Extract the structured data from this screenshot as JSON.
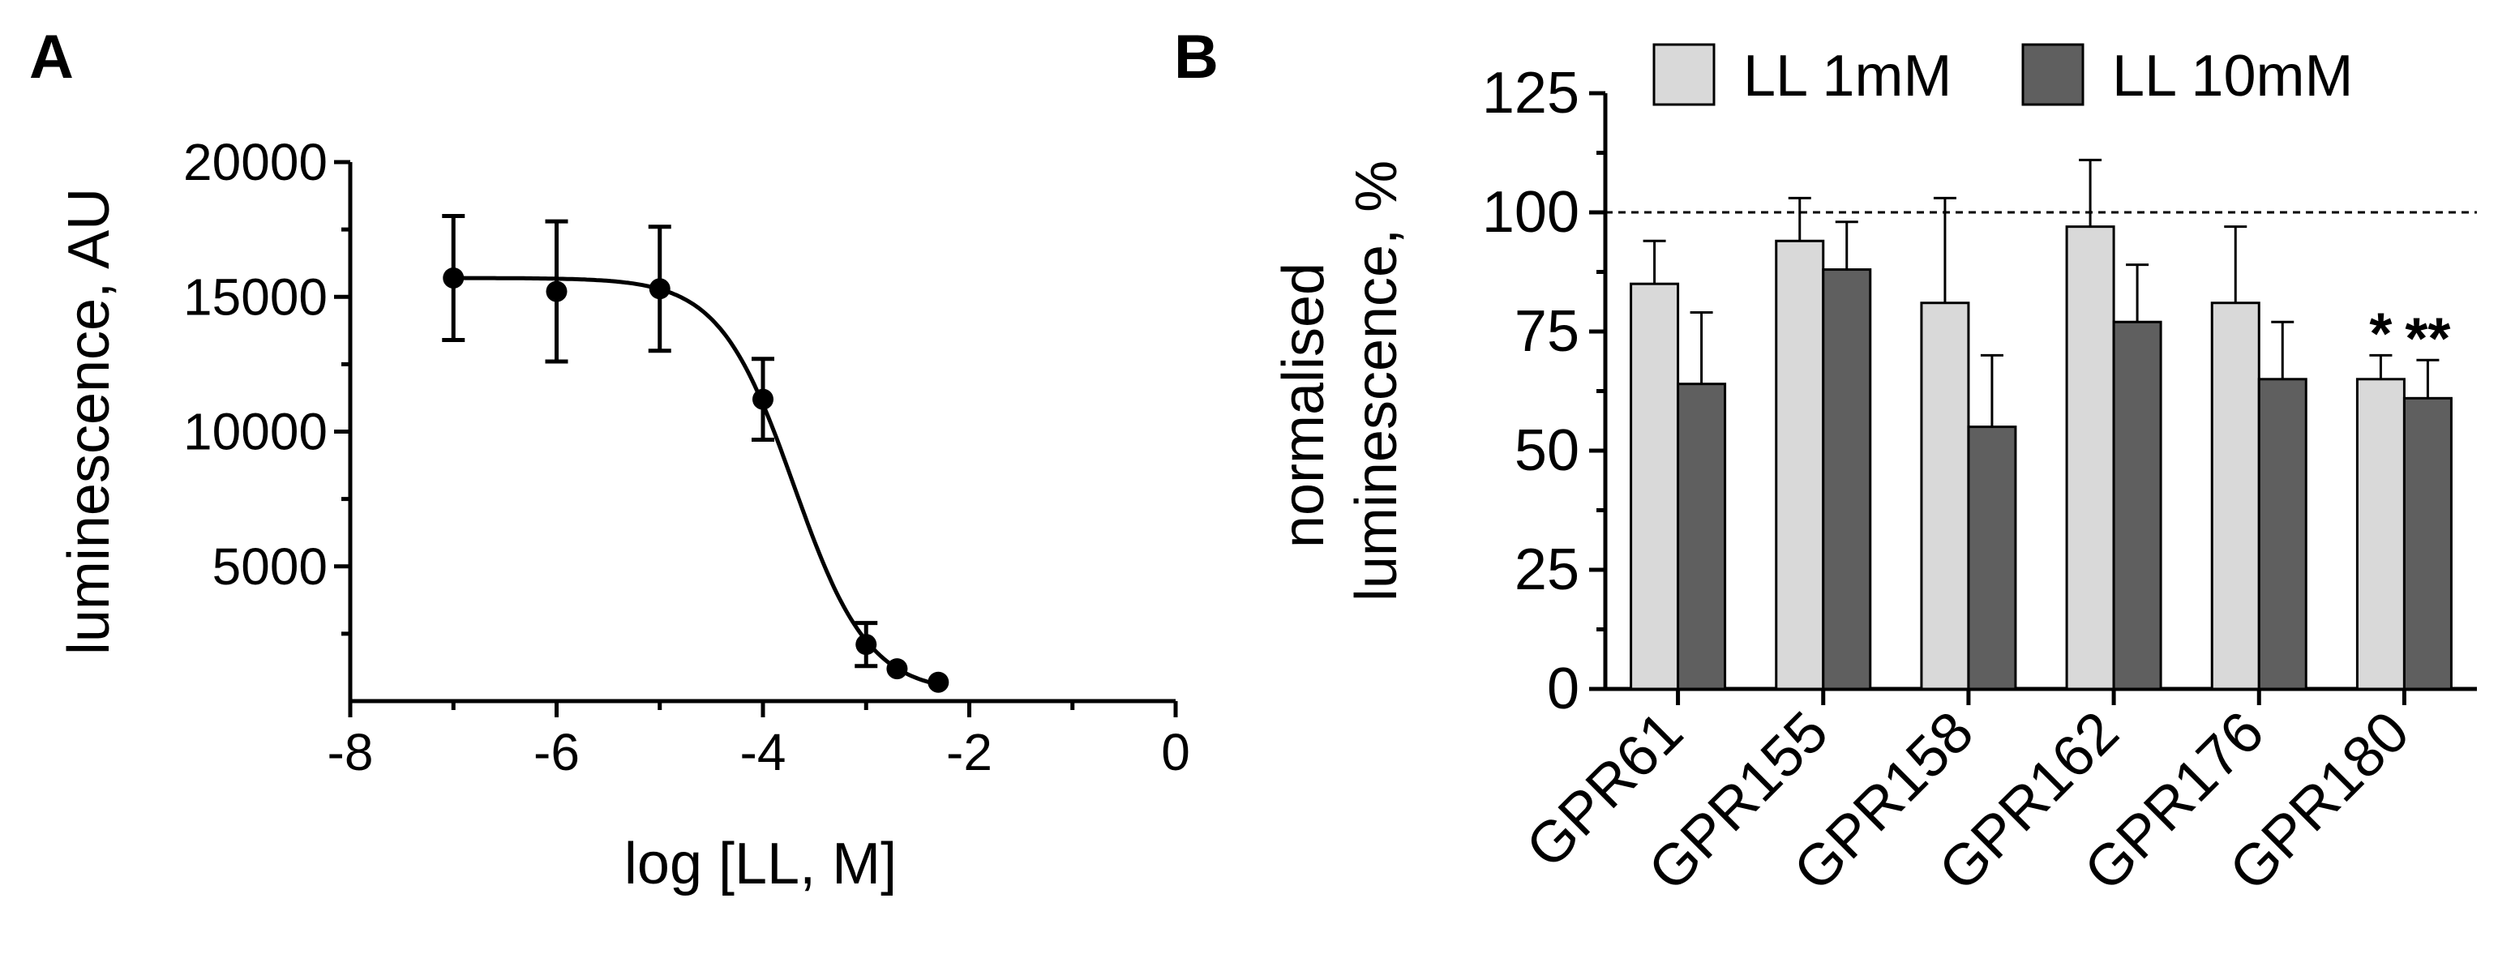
{
  "chart_data": [
    {
      "type": "scatter",
      "panel": "A",
      "title": "",
      "xlabel": "log [LL, M]",
      "ylabel": "luminescence, AU",
      "xlim": [
        -8,
        0
      ],
      "ylim": [
        0,
        20000
      ],
      "x_ticks": [
        -8,
        -6,
        -4,
        -2,
        0
      ],
      "x_tick_labels": [
        "-8",
        "-6",
        "-4",
        "-2",
        "0"
      ],
      "y_ticks": [
        5000,
        10000,
        15000,
        20000
      ],
      "y_tick_labels": [
        "5000",
        "10000",
        "15000",
        "20000"
      ],
      "points": [
        {
          "x": -7.0,
          "y": 15700,
          "err": 2300
        },
        {
          "x": -6.0,
          "y": 15200,
          "err": 2600
        },
        {
          "x": -5.0,
          "y": 15300,
          "err": 2300
        },
        {
          "x": -4.0,
          "y": 11200,
          "err": 1500
        },
        {
          "x": -3.0,
          "y": 2100,
          "err": 800
        },
        {
          "x": -2.7,
          "y": 1200,
          "err": 0
        },
        {
          "x": -2.3,
          "y": 700,
          "err": 0
        }
      ],
      "fit": {
        "model": "sigmoidal dose-response",
        "top": 15700,
        "bottom": 300,
        "log_ic50": -3.7,
        "hill_slope": -1.2
      }
    },
    {
      "type": "bar",
      "panel": "B",
      "title": "",
      "xlabel": "",
      "ylabel_lines": [
        "normalised",
        "luminescence, %"
      ],
      "ylim": [
        0,
        125
      ],
      "y_ticks": [
        0,
        25,
        50,
        75,
        100,
        125
      ],
      "y_tick_labels": [
        "0",
        "25",
        "50",
        "75",
        "100",
        "125"
      ],
      "reference_line": 100,
      "categories": [
        "GPR61",
        "GPR155",
        "GPR158",
        "GPR162",
        "GPR176",
        "GPR180"
      ],
      "series": [
        {
          "name": "LL 1mM",
          "color": "#d9d9d9",
          "values": [
            85,
            94,
            81,
            97,
            81,
            65
          ],
          "errors": [
            9,
            9,
            22,
            14,
            16,
            5
          ]
        },
        {
          "name": "LL 10mM",
          "color": "#5f5f5f",
          "values": [
            64,
            88,
            55,
            77,
            65,
            61
          ],
          "errors": [
            15,
            10,
            15,
            12,
            12,
            8
          ]
        }
      ],
      "annotations": [
        {
          "category": "GPR180",
          "series": "LL 1mM",
          "text": "*"
        },
        {
          "category": "GPR180",
          "series": "LL 10mM",
          "text": "**"
        }
      ],
      "legend_position": "top"
    }
  ]
}
